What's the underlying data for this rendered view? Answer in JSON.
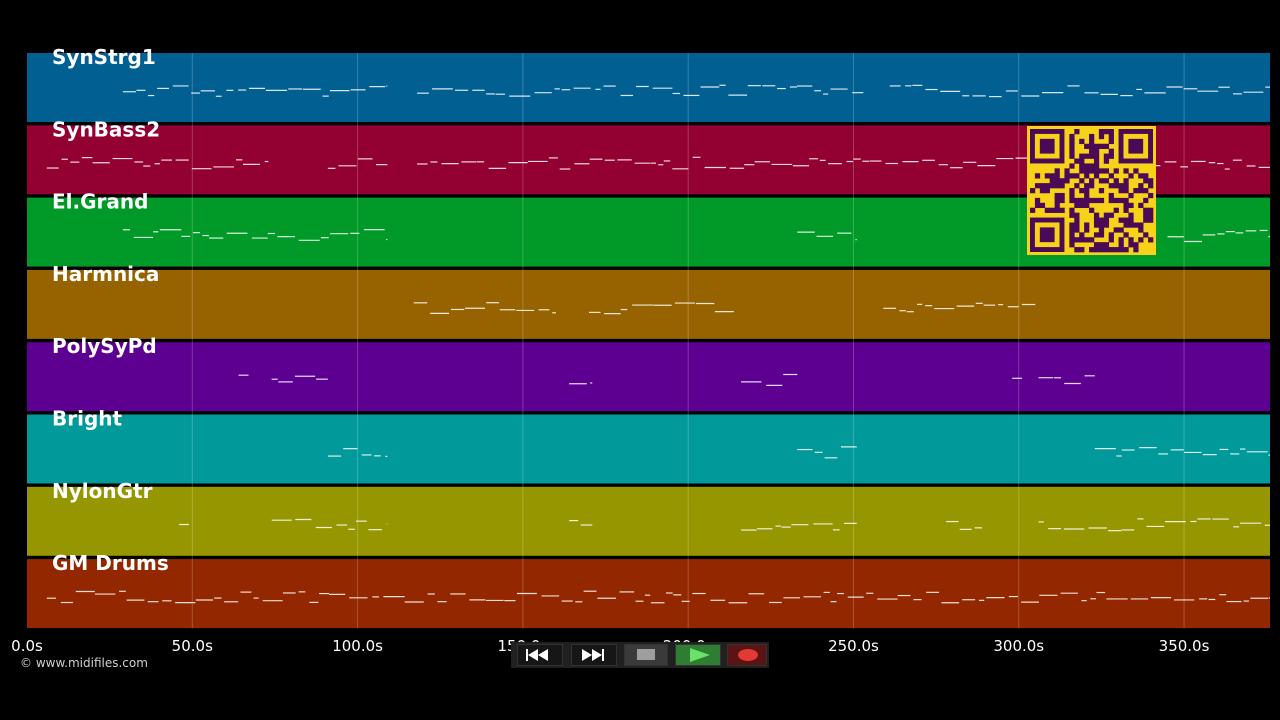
{
  "tracks": [
    {
      "name": "SynStrg1",
      "color": "#015f92"
    },
    {
      "name": "SynBass2",
      "color": "#930032"
    },
    {
      "name": "El.Grand",
      "color": "#019927"
    },
    {
      "name": "Harmnica",
      "color": "#966300"
    },
    {
      "name": "PolySyPd",
      "color": "#5d0092"
    },
    {
      "name": "Bright",
      "color": "#019999"
    },
    {
      "name": "NylonGtr",
      "color": "#969600"
    },
    {
      "name": "GM Drums",
      "color": "#932700"
    }
  ],
  "timeline": {
    "unit": "s",
    "ticks": [
      0,
      50,
      100,
      150,
      200,
      250,
      300,
      350
    ],
    "tick_labels": [
      "0.0s",
      "50.0s",
      "100.0s",
      "150.0s",
      "200.0s",
      "250.0s",
      "300.0s",
      "350.0s"
    ],
    "max_seconds": 376
  },
  "copyright": "© www.midifiles.com",
  "transport": {
    "rewind_icon": "rewind-icon",
    "forward_icon": "fast-forward-icon",
    "stop_icon": "stop-icon",
    "play_icon": "play-icon",
    "record_icon": "record-icon",
    "play_color": "#2e7d32",
    "record_color": "#c62828"
  },
  "qr_code": {
    "color_fg": "#4a0a55",
    "color_bg": "#f6d21a"
  }
}
